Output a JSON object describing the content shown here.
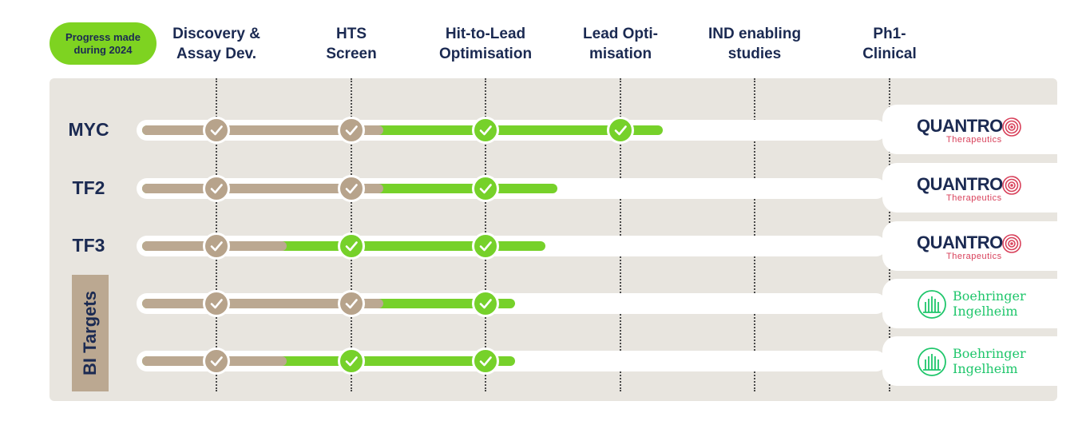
{
  "badge": {
    "label": "Progress made\nduring 2024",
    "color": "#7ed321"
  },
  "stages": [
    {
      "label": "Discovery &\nAssay Dev."
    },
    {
      "label": "HTS\nScreen"
    },
    {
      "label": "Hit-to-Lead\nOptimisation"
    },
    {
      "label": "Lead Opti-\nmisation"
    },
    {
      "label": "IND enabling\nstudies"
    },
    {
      "label": "Ph1-\nClinical"
    }
  ],
  "rows": [
    {
      "label": "MYC",
      "partner": "quantro",
      "stages_completed": 4,
      "stages_before_2024": 2
    },
    {
      "label": "TF2",
      "partner": "quantro",
      "stages_completed": 3,
      "stages_before_2024": 2
    },
    {
      "label": "TF3",
      "partner": "quantro",
      "stages_completed": 3,
      "stages_before_2024": 1
    },
    {
      "label": "",
      "partner": "boehringer",
      "stages_completed": 3,
      "stages_before_2024": 2
    },
    {
      "label": "",
      "partner": "boehringer",
      "stages_completed": 3,
      "stages_before_2024": 1
    }
  ],
  "group_label": "BI Targets",
  "partners": {
    "quantro": {
      "name": "QUANTRO",
      "sub": "Therapeutics",
      "icon": "fingerprint-icon"
    },
    "boehringer": {
      "name": "Boehringer\nIngelheim",
      "icon": "building-icon"
    }
  },
  "colors": {
    "completed_before": "#bba891",
    "progress_2024": "#76d12a",
    "text": "#1b2a52"
  }
}
